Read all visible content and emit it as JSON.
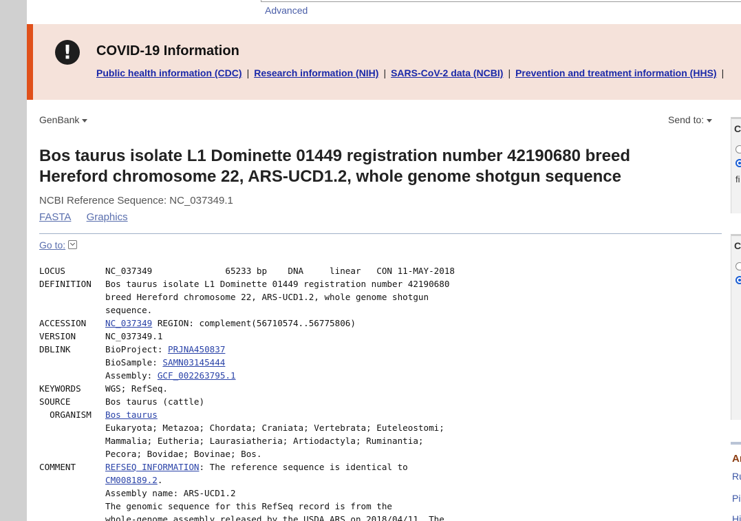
{
  "header": {
    "advanced_link": "Advanced"
  },
  "covid_banner": {
    "icon": "exclamation-circle-icon",
    "title": "COVID-19 Information",
    "links": [
      "Public health information (CDC)",
      "Research information (NIH)",
      "SARS-CoV-2 data (NCBI)",
      "Prevention and treatment information (HHS)"
    ],
    "separator": "|"
  },
  "toolbar": {
    "database": "GenBank",
    "send_to": "Send to:"
  },
  "record": {
    "title": "Bos taurus isolate L1 Dominette 01449 registration number 42190680 breed Hereford chromosome 22, ARS-UCD1.2, whole genome shotgun sequence",
    "ref_seq": "NCBI Reference Sequence: NC_037349.1",
    "format_links": [
      "FASTA",
      "Graphics"
    ],
    "goto": "Go to:"
  },
  "flatfile": [
    {
      "key": "LOCUS",
      "parts": [
        {
          "t": "NC_037349              65233 bp    DNA     linear   CON 11-MAY-2018"
        }
      ]
    },
    {
      "key": "DEFINITION",
      "parts": [
        {
          "t": "Bos taurus isolate L1 Dominette 01449 registration number 42190680"
        }
      ]
    },
    {
      "key": "",
      "parts": [
        {
          "t": "breed Hereford chromosome 22, ARS-UCD1.2, whole genome shotgun"
        }
      ]
    },
    {
      "key": "",
      "parts": [
        {
          "t": "sequence."
        }
      ]
    },
    {
      "key": "ACCESSION",
      "parts": [
        {
          "t": "NC_037349",
          "link": true
        },
        {
          "t": " REGION: complement(56710574..56775806)"
        }
      ]
    },
    {
      "key": "VERSION",
      "parts": [
        {
          "t": "NC_037349.1"
        }
      ]
    },
    {
      "key": "DBLINK",
      "parts": [
        {
          "t": "BioProject: "
        },
        {
          "t": "PRJNA450837",
          "link": true
        }
      ]
    },
    {
      "key": "",
      "parts": [
        {
          "t": "BioSample: "
        },
        {
          "t": "SAMN03145444",
          "link": true
        }
      ]
    },
    {
      "key": "",
      "parts": [
        {
          "t": "Assembly: "
        },
        {
          "t": "GCF_002263795.1",
          "link": true
        }
      ]
    },
    {
      "key": "KEYWORDS",
      "parts": [
        {
          "t": "WGS; RefSeq."
        }
      ]
    },
    {
      "key": "SOURCE",
      "parts": [
        {
          "t": "Bos taurus (cattle)"
        }
      ]
    },
    {
      "key": "  ORGANISM",
      "parts": [
        {
          "t": "Bos taurus",
          "link": true
        }
      ]
    },
    {
      "key": "",
      "parts": [
        {
          "t": "Eukaryota; Metazoa; Chordata; Craniata; Vertebrata; Euteleostomi;"
        }
      ]
    },
    {
      "key": "",
      "parts": [
        {
          "t": "Mammalia; Eutheria; Laurasiatheria; Artiodactyla; Ruminantia;"
        }
      ]
    },
    {
      "key": "",
      "parts": [
        {
          "t": "Pecora; Bovidae; Bovinae; Bos."
        }
      ]
    },
    {
      "key": "COMMENT",
      "parts": [
        {
          "t": "REFSEQ INFORMATION",
          "link": true
        },
        {
          "t": ": The reference sequence is identical to"
        }
      ]
    },
    {
      "key": "",
      "parts": [
        {
          "t": "CM008189.2",
          "link": true
        },
        {
          "t": "."
        }
      ]
    },
    {
      "key": "",
      "parts": [
        {
          "t": "Assembly name: ARS-UCD1.2"
        }
      ]
    },
    {
      "key": "",
      "parts": [
        {
          "t": "The genomic sequence for this RefSeq record is from the"
        }
      ]
    },
    {
      "key": "",
      "parts": [
        {
          "t": "whole-genome assembly released by the USDA ARS on 2018/04/11. The"
        }
      ]
    }
  ],
  "side_panels": {
    "panel1": {
      "title": "C",
      "text": "fi"
    },
    "panel2": {
      "title": "C"
    },
    "panel3": {
      "head": "Ar",
      "items": [
        "Ru",
        "Pi",
        "Hi"
      ]
    }
  }
}
